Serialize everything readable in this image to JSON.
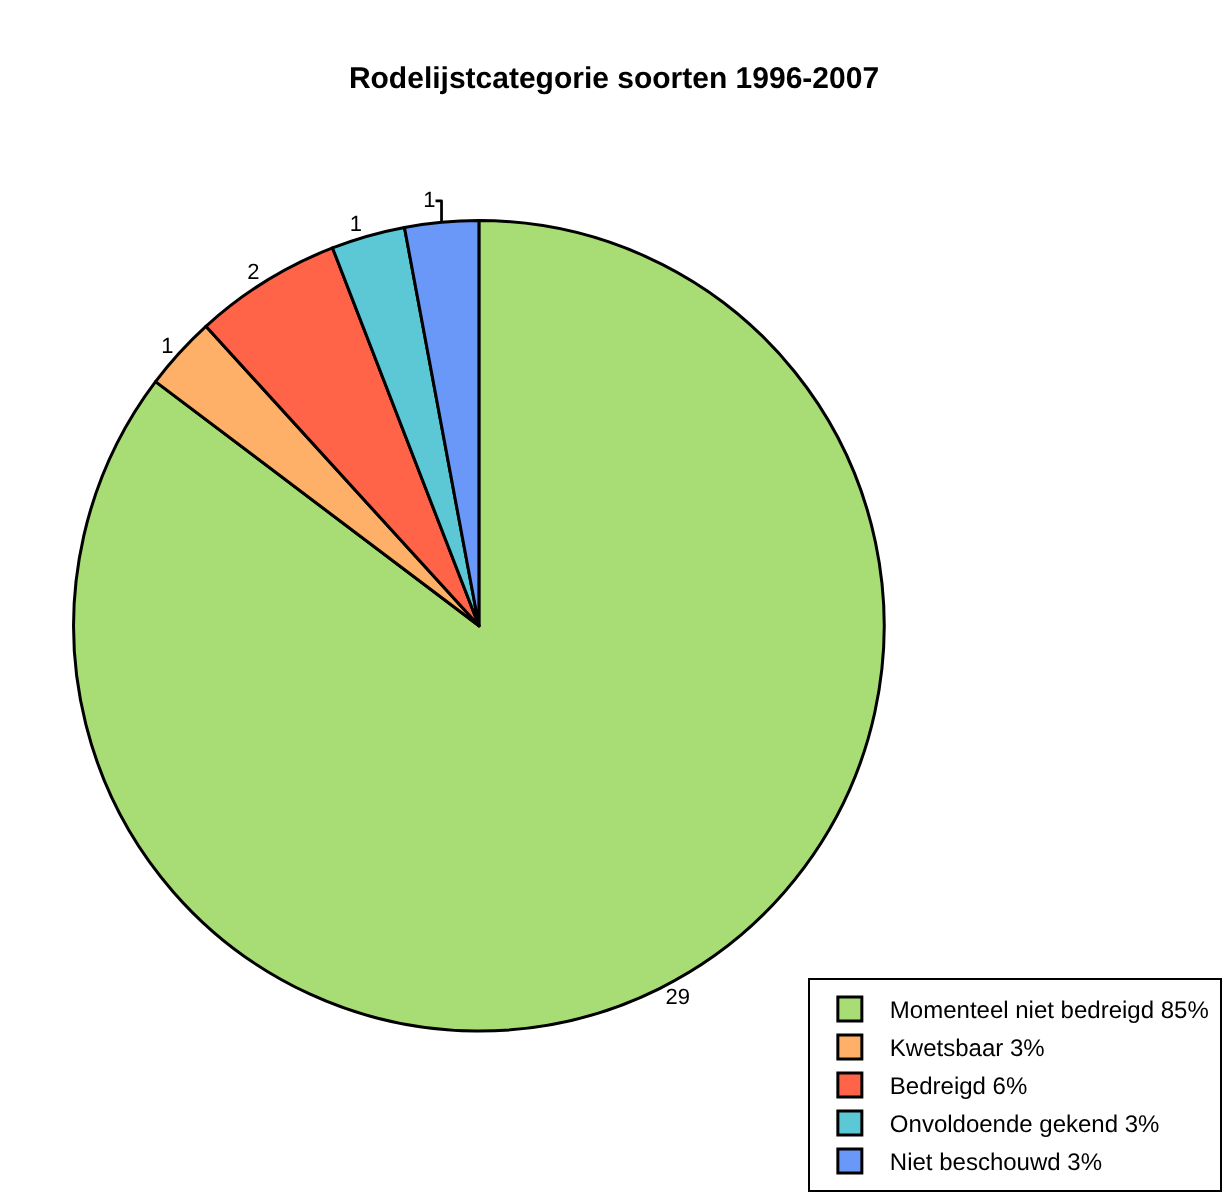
{
  "chart_data": {
    "type": "pie",
    "title": "Rodelijstcategorie soorten 1996-2007",
    "categories": [
      "Momenteel niet bedreigd 85%",
      "Kwetsbaar 3%",
      "Bedreigd 6%",
      "Onvoldoende gekend 3%",
      "Niet beschouwd 3%"
    ],
    "values": [
      29,
      1,
      2,
      1,
      1
    ],
    "colors": [
      "#a8dc74",
      "#ffb068",
      "#ff6448",
      "#5cc8d6",
      "#6a98f8"
    ],
    "data_labels": true,
    "legend": "bottom right"
  }
}
